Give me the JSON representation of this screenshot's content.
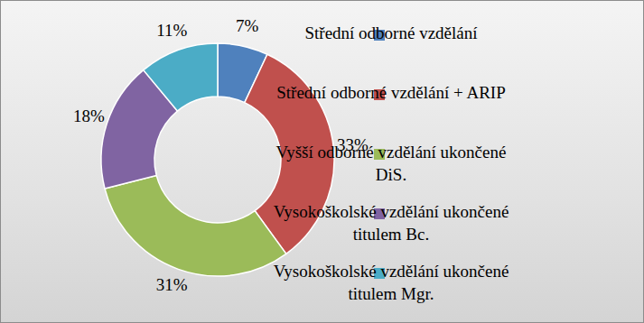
{
  "chart_data": {
    "type": "donut",
    "categories": [
      "Střední odborné vzdělání",
      "Střední odborné vzdělání + ARIP",
      "Vyšší odborné vzdělání ukončené DiS.",
      "Vysokoškolské vzdělání ukončené titulem Bc.",
      "Vysokoškolské vzdělání ukončené titulem Mgr."
    ],
    "values": [
      7,
      33,
      31,
      18,
      11
    ],
    "value_labels": [
      "7%",
      "33%",
      "31%",
      "18%",
      "11%"
    ],
    "colors": [
      "#4f81bd",
      "#c0504d",
      "#9bbb59",
      "#8064a2",
      "#4bacc6"
    ],
    "data_labels": true,
    "legend": "right"
  }
}
